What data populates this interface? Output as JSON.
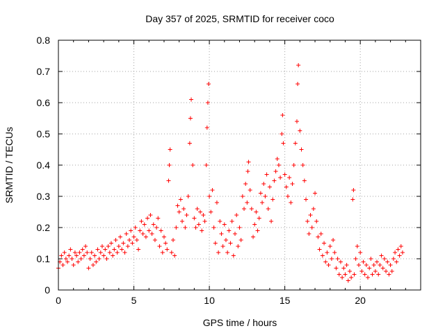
{
  "chart_data": {
    "type": "scatter",
    "title": "Day 357 of 2025, SRMTID for receiver coco",
    "xlabel": "GPS time / hours",
    "ylabel": "SRMTID / TECUs",
    "xlim": [
      0,
      24
    ],
    "ylim": [
      0,
      0.8
    ],
    "xticks": [
      "0",
      "5",
      "10",
      "15",
      "20"
    ],
    "yticks": [
      "0",
      "0.1",
      "0.2",
      "0.3",
      "0.4",
      "0.5",
      "0.6",
      "0.7",
      "0.8"
    ],
    "grid": true,
    "legend": "none",
    "marker": "+",
    "color": "#ff0000",
    "series": [
      {
        "name": "SRMTID",
        "points": [
          [
            0.0,
            0.07
          ],
          [
            0.1,
            0.09
          ],
          [
            0.2,
            0.11
          ],
          [
            0.3,
            0.08
          ],
          [
            0.4,
            0.12
          ],
          [
            0.5,
            0.1
          ],
          [
            0.6,
            0.09
          ],
          [
            0.7,
            0.11
          ],
          [
            0.8,
            0.13
          ],
          [
            0.9,
            0.1
          ],
          [
            1.0,
            0.08
          ],
          [
            1.1,
            0.12
          ],
          [
            1.2,
            0.11
          ],
          [
            1.3,
            0.09
          ],
          [
            1.4,
            0.12
          ],
          [
            1.5,
            0.1
          ],
          [
            1.6,
            0.13
          ],
          [
            1.7,
            0.11
          ],
          [
            1.8,
            0.14
          ],
          [
            1.9,
            0.12
          ],
          [
            2.0,
            0.07
          ],
          [
            2.1,
            0.1
          ],
          [
            2.2,
            0.12
          ],
          [
            2.3,
            0.08
          ],
          [
            2.4,
            0.11
          ],
          [
            2.5,
            0.09
          ],
          [
            2.6,
            0.13
          ],
          [
            2.7,
            0.1
          ],
          [
            2.8,
            0.12
          ],
          [
            2.9,
            0.14
          ],
          [
            3.0,
            0.11
          ],
          [
            3.1,
            0.13
          ],
          [
            3.2,
            0.1
          ],
          [
            3.3,
            0.14
          ],
          [
            3.4,
            0.12
          ],
          [
            3.5,
            0.15
          ],
          [
            3.6,
            0.11
          ],
          [
            3.7,
            0.13
          ],
          [
            3.8,
            0.16
          ],
          [
            3.9,
            0.12
          ],
          [
            4.0,
            0.14
          ],
          [
            4.1,
            0.17
          ],
          [
            4.2,
            0.13
          ],
          [
            4.3,
            0.15
          ],
          [
            4.4,
            0.12
          ],
          [
            4.5,
            0.18
          ],
          [
            4.6,
            0.14
          ],
          [
            4.7,
            0.16
          ],
          [
            4.8,
            0.19
          ],
          [
            4.9,
            0.15
          ],
          [
            5.0,
            0.17
          ],
          [
            5.1,
            0.2
          ],
          [
            5.2,
            0.16
          ],
          [
            5.3,
            0.13
          ],
          [
            5.4,
            0.19
          ],
          [
            5.5,
            0.22
          ],
          [
            5.6,
            0.18
          ],
          [
            5.7,
            0.21
          ],
          [
            5.8,
            0.17
          ],
          [
            5.9,
            0.23
          ],
          [
            6.0,
            0.19
          ],
          [
            6.1,
            0.24
          ],
          [
            6.2,
            0.18
          ],
          [
            6.3,
            0.21
          ],
          [
            6.4,
            0.16
          ],
          [
            6.5,
            0.2
          ],
          [
            6.6,
            0.23
          ],
          [
            6.7,
            0.14
          ],
          [
            6.8,
            0.19
          ],
          [
            6.9,
            0.12
          ],
          [
            7.0,
            0.17
          ],
          [
            7.1,
            0.15
          ],
          [
            7.2,
            0.13
          ],
          [
            7.3,
            0.35
          ],
          [
            7.35,
            0.4
          ],
          [
            7.4,
            0.45
          ],
          [
            7.5,
            0.12
          ],
          [
            7.6,
            0.16
          ],
          [
            7.7,
            0.11
          ],
          [
            7.8,
            0.2
          ],
          [
            7.9,
            0.27
          ],
          [
            8.0,
            0.25
          ],
          [
            8.1,
            0.29
          ],
          [
            8.2,
            0.22
          ],
          [
            8.3,
            0.26
          ],
          [
            8.4,
            0.2
          ],
          [
            8.5,
            0.24
          ],
          [
            8.6,
            0.3
          ],
          [
            8.7,
            0.47
          ],
          [
            8.75,
            0.55
          ],
          [
            8.8,
            0.61
          ],
          [
            8.9,
            0.4
          ],
          [
            9.0,
            0.23
          ],
          [
            9.1,
            0.2
          ],
          [
            9.2,
            0.26
          ],
          [
            9.3,
            0.21
          ],
          [
            9.4,
            0.25
          ],
          [
            9.5,
            0.19
          ],
          [
            9.6,
            0.24
          ],
          [
            9.7,
            0.22
          ],
          [
            9.8,
            0.4
          ],
          [
            9.85,
            0.52
          ],
          [
            9.9,
            0.6
          ],
          [
            9.95,
            0.66
          ],
          [
            10.0,
            0.3
          ],
          [
            10.1,
            0.25
          ],
          [
            10.2,
            0.32
          ],
          [
            10.3,
            0.2
          ],
          [
            10.4,
            0.15
          ],
          [
            10.5,
            0.28
          ],
          [
            10.6,
            0.12
          ],
          [
            10.7,
            0.22
          ],
          [
            10.8,
            0.18
          ],
          [
            10.9,
            0.14
          ],
          [
            11.0,
            0.21
          ],
          [
            11.1,
            0.16
          ],
          [
            11.2,
            0.12
          ],
          [
            11.3,
            0.19
          ],
          [
            11.4,
            0.15
          ],
          [
            11.5,
            0.22
          ],
          [
            11.6,
            0.11
          ],
          [
            11.7,
            0.18
          ],
          [
            11.8,
            0.24
          ],
          [
            11.9,
            0.14
          ],
          [
            12.0,
            0.2
          ],
          [
            12.1,
            0.16
          ],
          [
            12.2,
            0.3
          ],
          [
            12.3,
            0.26
          ],
          [
            12.4,
            0.34
          ],
          [
            12.5,
            0.28
          ],
          [
            12.55,
            0.38
          ],
          [
            12.6,
            0.41
          ],
          [
            12.7,
            0.32
          ],
          [
            12.8,
            0.26
          ],
          [
            12.9,
            0.17
          ],
          [
            13.0,
            0.21
          ],
          [
            13.1,
            0.25
          ],
          [
            13.2,
            0.19
          ],
          [
            13.3,
            0.23
          ],
          [
            13.4,
            0.31
          ],
          [
            13.5,
            0.28
          ],
          [
            13.6,
            0.34
          ],
          [
            13.7,
            0.3
          ],
          [
            13.8,
            0.37
          ],
          [
            13.9,
            0.26
          ],
          [
            14.0,
            0.33
          ],
          [
            14.1,
            0.22
          ],
          [
            14.2,
            0.29
          ],
          [
            14.3,
            0.35
          ],
          [
            14.4,
            0.38
          ],
          [
            14.5,
            0.42
          ],
          [
            14.6,
            0.4
          ],
          [
            14.7,
            0.36
          ],
          [
            14.8,
            0.5
          ],
          [
            14.85,
            0.56
          ],
          [
            14.9,
            0.47
          ],
          [
            15.0,
            0.37
          ],
          [
            15.1,
            0.33
          ],
          [
            15.2,
            0.3
          ],
          [
            15.3,
            0.36
          ],
          [
            15.4,
            0.28
          ],
          [
            15.5,
            0.34
          ],
          [
            15.6,
            0.4
          ],
          [
            15.7,
            0.47
          ],
          [
            15.8,
            0.54
          ],
          [
            15.85,
            0.66
          ],
          [
            15.9,
            0.72
          ],
          [
            16.0,
            0.51
          ],
          [
            16.1,
            0.45
          ],
          [
            16.2,
            0.4
          ],
          [
            16.3,
            0.35
          ],
          [
            16.4,
            0.29
          ],
          [
            16.5,
            0.22
          ],
          [
            16.6,
            0.18
          ],
          [
            16.7,
            0.24
          ],
          [
            16.8,
            0.2
          ],
          [
            16.9,
            0.26
          ],
          [
            17.0,
            0.31
          ],
          [
            17.1,
            0.22
          ],
          [
            17.2,
            0.17
          ],
          [
            17.3,
            0.13
          ],
          [
            17.4,
            0.18
          ],
          [
            17.5,
            0.11
          ],
          [
            17.6,
            0.15
          ],
          [
            17.7,
            0.09
          ],
          [
            17.8,
            0.12
          ],
          [
            17.9,
            0.08
          ],
          [
            18.0,
            0.14
          ],
          [
            18.1,
            0.1
          ],
          [
            18.2,
            0.16
          ],
          [
            18.3,
            0.12
          ],
          [
            18.4,
            0.07
          ],
          [
            18.5,
            0.1
          ],
          [
            18.6,
            0.05
          ],
          [
            18.7,
            0.09
          ],
          [
            18.8,
            0.04
          ],
          [
            18.9,
            0.07
          ],
          [
            19.0,
            0.05
          ],
          [
            19.1,
            0.08
          ],
          [
            19.2,
            0.03
          ],
          [
            19.3,
            0.06
          ],
          [
            19.4,
            0.04
          ],
          [
            19.5,
            0.29
          ],
          [
            19.55,
            0.32
          ],
          [
            19.6,
            0.05
          ],
          [
            19.7,
            0.1
          ],
          [
            19.8,
            0.14
          ],
          [
            19.9,
            0.08
          ],
          [
            20.0,
            0.12
          ],
          [
            20.1,
            0.06
          ],
          [
            20.2,
            0.09
          ],
          [
            20.3,
            0.05
          ],
          [
            20.4,
            0.08
          ],
          [
            20.5,
            0.04
          ],
          [
            20.6,
            0.07
          ],
          [
            20.7,
            0.1
          ],
          [
            20.8,
            0.05
          ],
          [
            20.9,
            0.08
          ],
          [
            21.0,
            0.06
          ],
          [
            21.1,
            0.09
          ],
          [
            21.2,
            0.05
          ],
          [
            21.3,
            0.08
          ],
          [
            21.4,
            0.11
          ],
          [
            21.5,
            0.07
          ],
          [
            21.6,
            0.1
          ],
          [
            21.7,
            0.06
          ],
          [
            21.8,
            0.09
          ],
          [
            21.9,
            0.05
          ],
          [
            22.0,
            0.08
          ],
          [
            22.1,
            0.06
          ],
          [
            22.2,
            0.1
          ],
          [
            22.3,
            0.12
          ],
          [
            22.4,
            0.09
          ],
          [
            22.5,
            0.13
          ],
          [
            22.6,
            0.11
          ],
          [
            22.7,
            0.14
          ],
          [
            22.8,
            0.12
          ]
        ]
      }
    ]
  }
}
